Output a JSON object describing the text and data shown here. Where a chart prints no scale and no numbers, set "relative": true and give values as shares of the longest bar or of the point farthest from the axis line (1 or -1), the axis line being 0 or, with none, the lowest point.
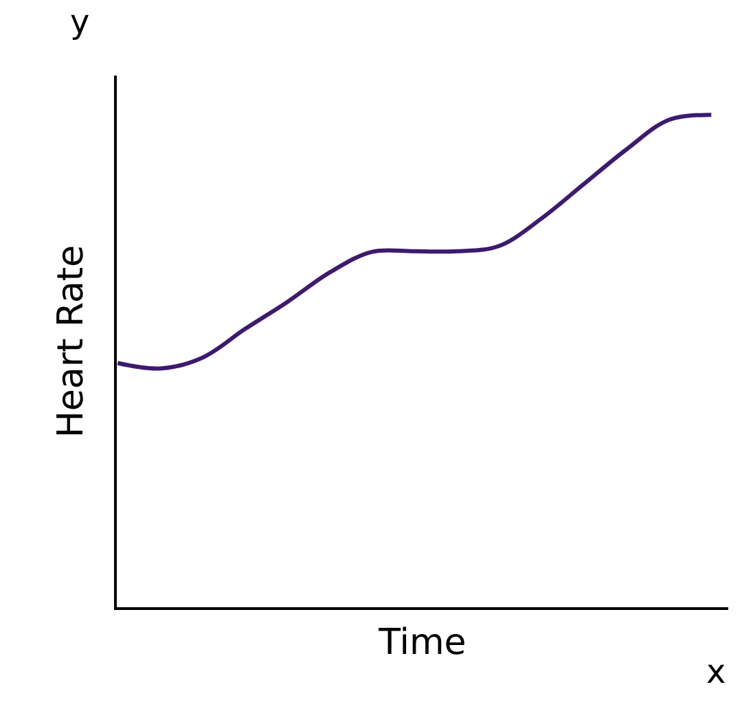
{
  "chart_data": {
    "type": "line",
    "relative": true,
    "xlabel": "Time",
    "ylabel": "Heart Rate",
    "annotations": [
      "y",
      "x"
    ],
    "categories": [
      null,
      null,
      null,
      null,
      null,
      null,
      null,
      null,
      null,
      null,
      null,
      null,
      null,
      null,
      null
    ],
    "series": [
      {
        "color": "#3d1a6e",
        "values": [
          0.496,
          0.485,
          0.507,
          0.565,
          0.62,
          0.68,
          0.722,
          0.723,
          0.723,
          0.734,
          0.79,
          0.86,
          0.93,
          0.99,
          1.0
        ]
      }
    ],
    "tick_labels": false,
    "marker": "none",
    "line_style": "solid"
  }
}
